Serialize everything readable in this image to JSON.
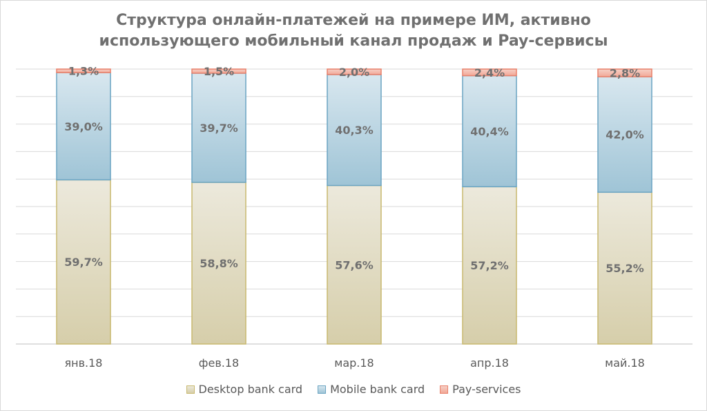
{
  "chart_data": {
    "type": "bar",
    "stacked": true,
    "percent_stacked": true,
    "title": "Структура онлайн-платежей на примере ИМ, активно использующего мобильный канал продаж и Pay-сервисы",
    "title_lines": [
      "Структура онлайн-платежей на примере ИМ, активно",
      "использующего мобильный канал продаж и Pay-сервисы"
    ],
    "categories": [
      "янв.18",
      "фев.18",
      "мар.18",
      "апр.18",
      "май.18"
    ],
    "ylim": [
      0,
      100
    ],
    "grid": true,
    "legend_position": "bottom",
    "series": [
      {
        "name": "Desktop bank card",
        "values": [
          59.7,
          58.8,
          57.6,
          57.2,
          55.2
        ],
        "labels": [
          "59,7%",
          "58,8%",
          "57,6%",
          "57,2%",
          "55,2%"
        ],
        "color_top": "#ece9dc",
        "color_bottom": "#d6ceaa",
        "border": "#c8b86e"
      },
      {
        "name": "Mobile bank card",
        "values": [
          39.0,
          39.7,
          40.3,
          40.4,
          42.0
        ],
        "labels": [
          "39,0%",
          "39,7%",
          "40,3%",
          "40,4%",
          "42,0%"
        ],
        "color_top": "#d8e7ef",
        "color_bottom": "#9fc4d6",
        "border": "#6aa4c2"
      },
      {
        "name": "Pay-services",
        "values": [
          1.3,
          1.5,
          2.0,
          2.4,
          2.8
        ],
        "labels": [
          "1,3%",
          "1,5%",
          "2,0%",
          "2,4%",
          "2,8%"
        ],
        "color_top": "#f6d0c6",
        "color_bottom": "#f2a897",
        "border": "#e8806a"
      }
    ]
  }
}
